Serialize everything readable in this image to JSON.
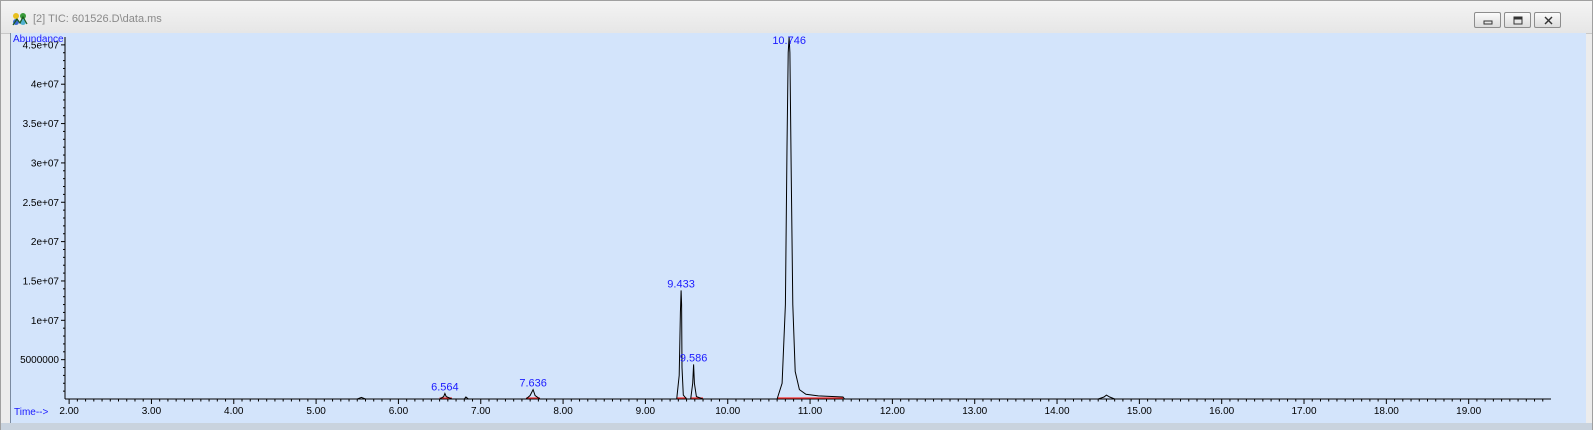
{
  "window": {
    "title": "[2] TIC: 601526.D\\data.ms",
    "icon": "chromatogram-app-icon",
    "controls": [
      "minimize",
      "restore",
      "close"
    ]
  },
  "colors": {
    "plot_bg": "#d3e4fb",
    "trace": "#000000",
    "label": "#1a1aff",
    "baseline_marker": "#ff3030"
  },
  "chart_data": {
    "type": "line",
    "title": "",
    "xlabel": "Time-->",
    "ylabel": "Abundance",
    "xlim": [
      1.95,
      20.0
    ],
    "ylim": [
      0,
      46000000.0
    ],
    "x_ticks": [
      2,
      3,
      4,
      5,
      6,
      7,
      8,
      9,
      10,
      11,
      12,
      13,
      14,
      15,
      16,
      17,
      18,
      19
    ],
    "x_tick_labels": [
      "2.00",
      "3.00",
      "4.00",
      "5.00",
      "6.00",
      "7.00",
      "8.00",
      "9.00",
      "10.00",
      "11.00",
      "12.00",
      "13.00",
      "14.00",
      "15.00",
      "16.00",
      "17.00",
      "18.00",
      "19.00"
    ],
    "y_ticks": [
      5000000,
      10000000,
      15000000,
      20000000,
      25000000,
      30000000,
      35000000,
      40000000,
      45000000
    ],
    "y_tick_labels": [
      "5000000",
      "1e+07",
      "1.5e+07",
      "2e+07",
      "2.5e+07",
      "3e+07",
      "3.5e+07",
      "4e+07",
      "4.5e+07"
    ],
    "grid": false,
    "series": [
      {
        "x": [
          1.95,
          5.5,
          5.55,
          5.6,
          6.5,
          6.55,
          6.564,
          6.58,
          6.65,
          6.8,
          6.82,
          6.85,
          7.55,
          7.6,
          7.636,
          7.66,
          7.72,
          9.38,
          9.41,
          9.425,
          9.433,
          9.44,
          9.445,
          9.46,
          9.5,
          9.55,
          9.575,
          9.586,
          9.595,
          9.62,
          9.7,
          10.6,
          10.66,
          10.7,
          10.72,
          10.735,
          10.746,
          10.755,
          10.77,
          10.79,
          10.82,
          10.87,
          10.95,
          11.1,
          11.3,
          11.4,
          11.42,
          14.5,
          14.57,
          14.6,
          14.64,
          14.7,
          20.0
        ],
        "y": [
          0,
          0,
          200000,
          0,
          0,
          300000,
          700000,
          300000,
          0,
          0,
          250000,
          0,
          0,
          450000,
          1200000,
          450000,
          0,
          0,
          3000000,
          11000000,
          13800000,
          12000000,
          4000000,
          500000,
          0,
          0,
          2000000,
          4400000,
          2000000,
          300000,
          0,
          0,
          2000000,
          12000000,
          32000000,
          44000000,
          46000000,
          44000000,
          30000000,
          12000000,
          3500000,
          1200000,
          600000,
          400000,
          300000,
          250000,
          0,
          0,
          250000,
          500000,
          250000,
          0,
          0
        ]
      }
    ],
    "peak_labels": [
      {
        "x": 6.564,
        "y": 700000,
        "text": "6.564"
      },
      {
        "x": 7.636,
        "y": 1200000,
        "text": "7.636"
      },
      {
        "x": 9.433,
        "y": 13800000,
        "text": "9.433"
      },
      {
        "x": 9.586,
        "y": 4400000,
        "text": "9.586"
      },
      {
        "x": 10.746,
        "y": 46000000,
        "text": "10.746"
      }
    ],
    "integration_baselines": [
      [
        6.5,
        6.65
      ],
      [
        7.55,
        7.72
      ],
      [
        9.38,
        9.5
      ],
      [
        9.55,
        9.7
      ],
      [
        10.6,
        11.4
      ]
    ]
  }
}
